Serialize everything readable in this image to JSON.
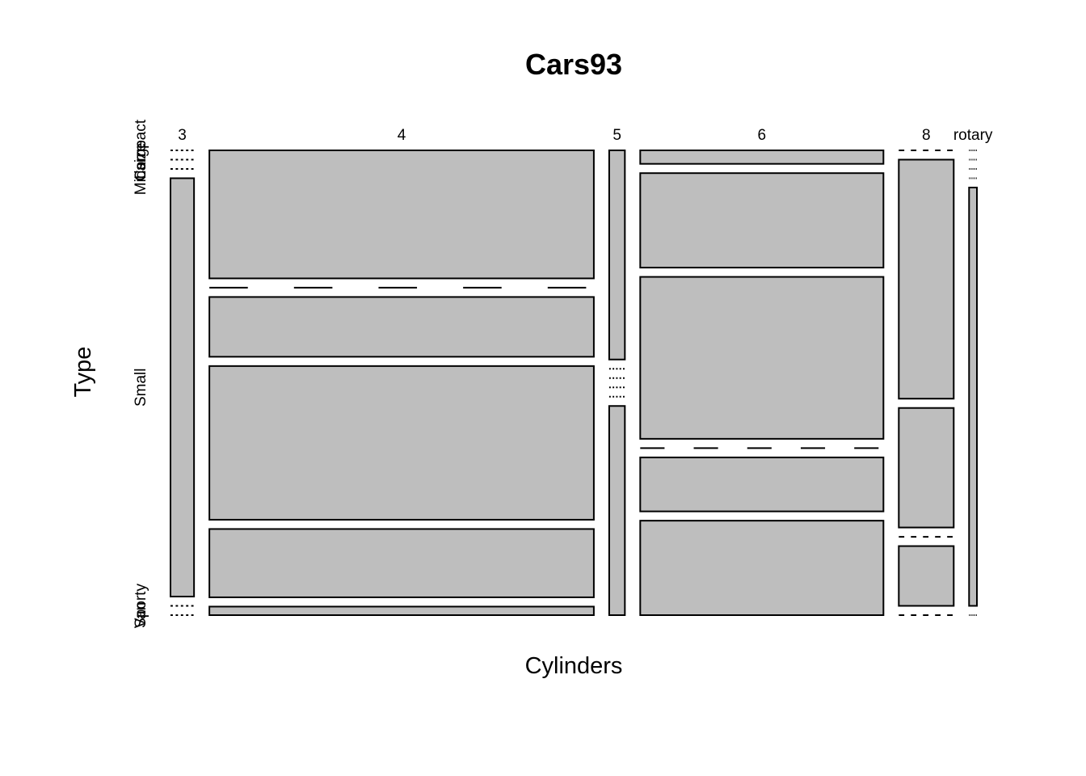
{
  "chart_data": {
    "type": "mosaic",
    "title": "Cars93",
    "xlabel": "Cylinders",
    "ylabel": "Type",
    "x_categories": [
      "3",
      "4",
      "5",
      "6",
      "8",
      "rotary"
    ],
    "y_categories": [
      "Compact",
      "Large",
      "Midsize",
      "Small",
      "Sporty",
      "Van"
    ],
    "counts": {
      "3": {
        "Compact": 0,
        "Large": 0,
        "Midsize": 0,
        "Small": 3,
        "Sporty": 0,
        "Van": 0
      },
      "4": {
        "Compact": 15,
        "Large": 0,
        "Midsize": 7,
        "Small": 18,
        "Sporty": 8,
        "Van": 1
      },
      "5": {
        "Compact": 1,
        "Large": 0,
        "Midsize": 0,
        "Small": 0,
        "Sporty": 0,
        "Van": 1
      },
      "6": {
        "Compact": 1,
        "Large": 7,
        "Midsize": 12,
        "Small": 0,
        "Sporty": 4,
        "Van": 7
      },
      "8": {
        "Compact": 0,
        "Large": 4,
        "Midsize": 2,
        "Small": 0,
        "Sporty": 1,
        "Van": 0
      },
      "rotary": {
        "Compact": 0,
        "Large": 0,
        "Midsize": 0,
        "Small": 0,
        "Sporty": 1,
        "Van": 0
      }
    },
    "fill_color": "#bebebe",
    "border_color": "#000000"
  }
}
